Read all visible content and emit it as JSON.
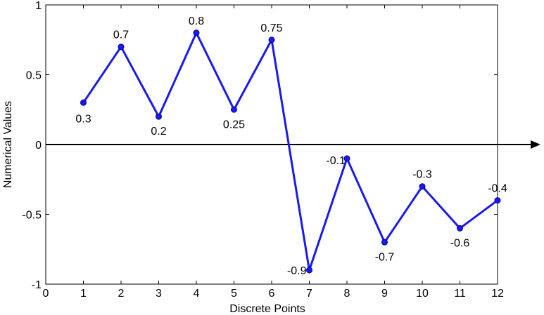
{
  "chart_data": {
    "type": "line",
    "title": "",
    "xlabel": "Discrete Points",
    "ylabel": "Numerical Values",
    "xlim": [
      0,
      12
    ],
    "ylim": [
      -1,
      1
    ],
    "xticks": [
      "0",
      "1",
      "2",
      "3",
      "4",
      "5",
      "6",
      "7",
      "8",
      "9",
      "10",
      "11",
      "12"
    ],
    "yticks": [
      "-1",
      "-0.5",
      "0",
      "0.5",
      "1"
    ],
    "grid": false,
    "legend": "none",
    "x": [
      1,
      2,
      3,
      4,
      5,
      6,
      7,
      8,
      9,
      10,
      11,
      12
    ],
    "series": [
      {
        "values": [
          0.3,
          0.7,
          0.2,
          0.8,
          0.25,
          0.75,
          -0.9,
          -0.1,
          -0.7,
          -0.3,
          -0.6,
          -0.4
        ],
        "labels": [
          "0.3",
          "0.7",
          "0.2",
          "0.8",
          "0.25",
          "0.75",
          "-0.9",
          "-0.1",
          "-0.7",
          "-0.3",
          "-0.6",
          "-0.4"
        ],
        "color": "#1a1aee"
      }
    ]
  }
}
